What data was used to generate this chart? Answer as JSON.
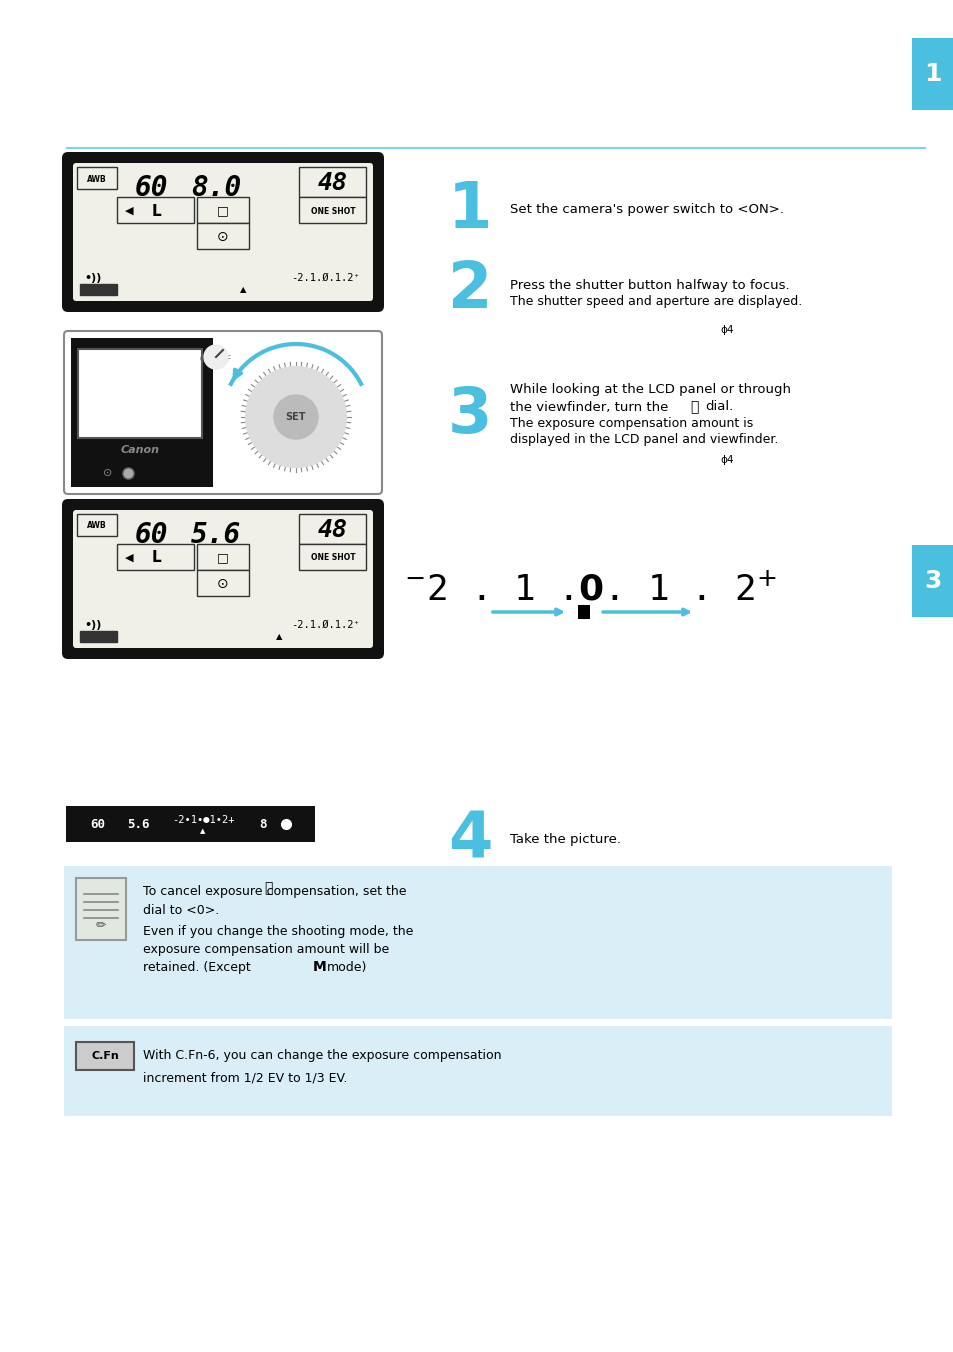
{
  "page_bg": "#ffffff",
  "blue_tab_color": "#4abfdf",
  "blue_line_color": "#7fd4e8",
  "light_blue_box": "#daeef8",
  "dark_lcd": "#111111",
  "lcd_bg": "#e8e8e0",
  "step1_text": "Set the camera's power switch to <ON>.",
  "step2_text": "Press the shutter button halfway to focus.",
  "step2_sub": "The shutter speed and aperture are displayed.",
  "step3_line1": "While looking at the LCD panel or through",
  "step3_line2": "the viewfinder, turn the",
  "step3_line2b": "dial.",
  "step3_sub1": "The exposure compensation amount is",
  "step3_sub2": "displayed in the LCD panel and viewfinder.",
  "step4_text": "Take the picture.",
  "note1_line1": "To cancel exposure compensation, set the",
  "note1_line2": "dial to <0>.",
  "note1_line3": "Even if you change the shooting mode, the",
  "note1_line4": "exposure compensation amount will be",
  "note1_line5": "retained. (Except",
  "note1_line5b": "mode)",
  "note2_line1": "With C.Fn-6, you can change the exposure compensation",
  "note2_line2": "increment from 1/2 EV to 1/3 EV."
}
